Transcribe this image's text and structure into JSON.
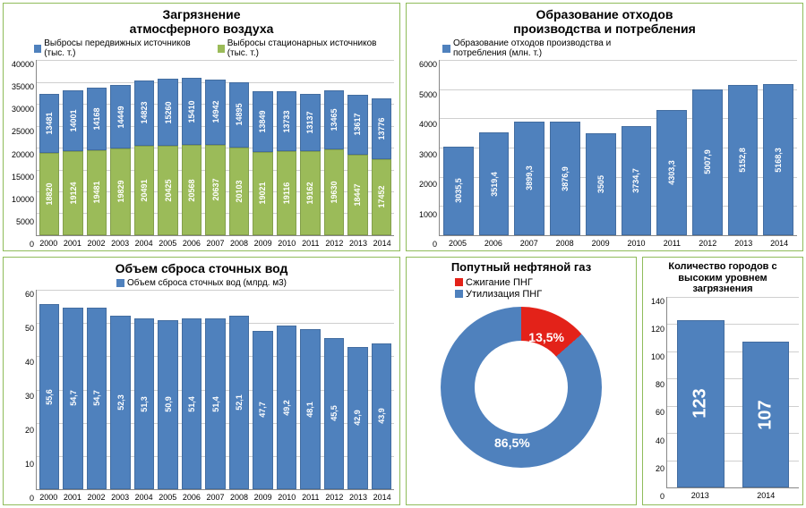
{
  "air": {
    "title": "Загрязнение\nатмосферного воздуха",
    "title_fontsize": 14,
    "legend": [
      {
        "label": "Выбросы передвижных источников (тыс. т.)",
        "color": "#4f81bd"
      },
      {
        "label": "Выбросы стационарных источников (тыс. т.)",
        "color": "#9bbb59"
      }
    ],
    "type": "stacked-bar",
    "categories": [
      "2000",
      "2001",
      "2002",
      "2003",
      "2004",
      "2005",
      "2006",
      "2007",
      "2008",
      "2009",
      "2010",
      "2011",
      "2012",
      "2013",
      "2014"
    ],
    "series_stationary": [
      18820,
      19124,
      19481,
      19829,
      20491,
      20425,
      20568,
      20637,
      20103,
      19021,
      19116,
      19162,
      19630,
      18447,
      17452
    ],
    "series_mobile": [
      13481,
      14001,
      14168,
      14449,
      14823,
      15260,
      15410,
      14942,
      14895,
      13849,
      13733,
      13137,
      13465,
      13617,
      13776
    ],
    "stationary_color": "#9bbb59",
    "mobile_color": "#4f81bd",
    "ylim": [
      0,
      40000
    ],
    "ytick_step": 5000,
    "background_color": "#ffffff",
    "grid_color": "#cfcfcf",
    "label_fontsize": 9,
    "bar_label_color": "#ffffff"
  },
  "waste": {
    "title": "Образование отходов\nпроизводства и потребления",
    "title_fontsize": 14,
    "legend": [
      {
        "label": "Образование отходов производства и\nпотребления (млн. т.)",
        "color": "#4f81bd"
      }
    ],
    "type": "bar",
    "categories": [
      "2005",
      "2006",
      "2007",
      "2008",
      "2009",
      "2010",
      "2011",
      "2012",
      "2013",
      "2014"
    ],
    "values": [
      3035.5,
      3519.4,
      3899.3,
      3876.9,
      3505,
      3734.7,
      4303.3,
      5007.9,
      5152.8,
      5168.3
    ],
    "bar_color": "#4f81bd",
    "ylim": [
      0,
      6000
    ],
    "ytick_step": 1000,
    "background_color": "#ffffff",
    "grid_color": "#cfcfcf",
    "label_fontsize": 9,
    "bar_label_color": "#ffffff"
  },
  "wastewater": {
    "title": "Объем сброса сточных вод",
    "title_fontsize": 14,
    "legend": [
      {
        "label": "Объем сброса сточных вод (млрд. м3)",
        "color": "#4f81bd"
      }
    ],
    "type": "bar",
    "categories": [
      "2000",
      "2001",
      "2002",
      "2003",
      "2004",
      "2005",
      "2006",
      "2007",
      "2008",
      "2009",
      "2010",
      "2011",
      "2012",
      "2013",
      "2014"
    ],
    "values": [
      55.6,
      54.7,
      54.7,
      52.3,
      51.3,
      50.9,
      51.4,
      51.4,
      52.1,
      47.7,
      49.2,
      48.1,
      45.5,
      42.9,
      43.9
    ],
    "bar_color": "#4f81bd",
    "ylim": [
      0,
      60
    ],
    "ytick_step": 10,
    "background_color": "#ffffff",
    "grid_color": "#cfcfcf",
    "label_fontsize": 9,
    "bar_label_color": "#ffffff"
  },
  "gas": {
    "title": "Попутный нефтяной газ",
    "title_fontsize": 13,
    "type": "donut",
    "legend": [
      {
        "label": "Сжигание ПНГ",
        "color": "#e32219"
      },
      {
        "label": "Утилизация ПНГ",
        "color": "#4f81bd"
      }
    ],
    "slices": [
      {
        "label": "13,5%",
        "value": 13.5,
        "color": "#e32219"
      },
      {
        "label": "86,5%",
        "value": 86.5,
        "color": "#4f81bd"
      }
    ],
    "inner_radius_pct": 42,
    "label_color": "#ffffff",
    "label_fontsize": 14
  },
  "cities": {
    "title": "Количество городов с\nвысоким уровнем\nзагрязнения",
    "title_fontsize": 11,
    "type": "bar",
    "categories": [
      "2013",
      "2014"
    ],
    "values": [
      123,
      107
    ],
    "bar_color": "#4f81bd",
    "ylim": [
      0,
      140
    ],
    "ytick_step": 20,
    "background_color": "#ffffff",
    "grid_color": "#cfcfcf",
    "label_fontsize": 9,
    "bar_label_color": "#ffffff",
    "bar_label_fontsize": 20
  }
}
